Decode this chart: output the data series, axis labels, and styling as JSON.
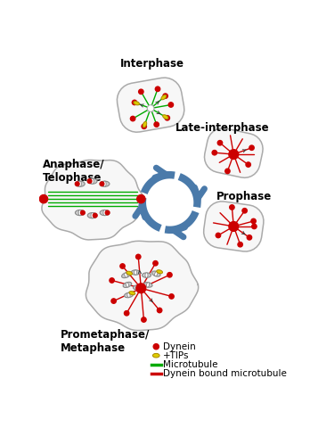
{
  "bg_color": "#ffffff",
  "cell_outline_color": "#aaaaaa",
  "dynein_color": "#cc0000",
  "tips_fill": "#ddcc00",
  "tips_edge": "#aa8800",
  "mt_color": "#00aa00",
  "dmt_color": "#cc0000",
  "arrow_color": "#4a7aaa",
  "chrom_fill": "#cccccc",
  "chrom_edge": "#888888",
  "stage_labels": {
    "interphase": "Interphase",
    "late_interphase": "Late-interphase",
    "anaphase": "Anaphase/\nTelophase",
    "prometaphase": "Prometaphase/\nMetaphase",
    "prophase": "Prophase"
  },
  "legend": [
    {
      "label": "Dynein",
      "type": "dot",
      "color": "#cc0000"
    },
    {
      "label": "+TIPs",
      "type": "oval",
      "color": "#ddcc00"
    },
    {
      "label": "Microtubule",
      "type": "line",
      "color": "#00aa00"
    },
    {
      "label": "Dynein bound microtubule",
      "type": "line",
      "color": "#cc0000"
    }
  ]
}
